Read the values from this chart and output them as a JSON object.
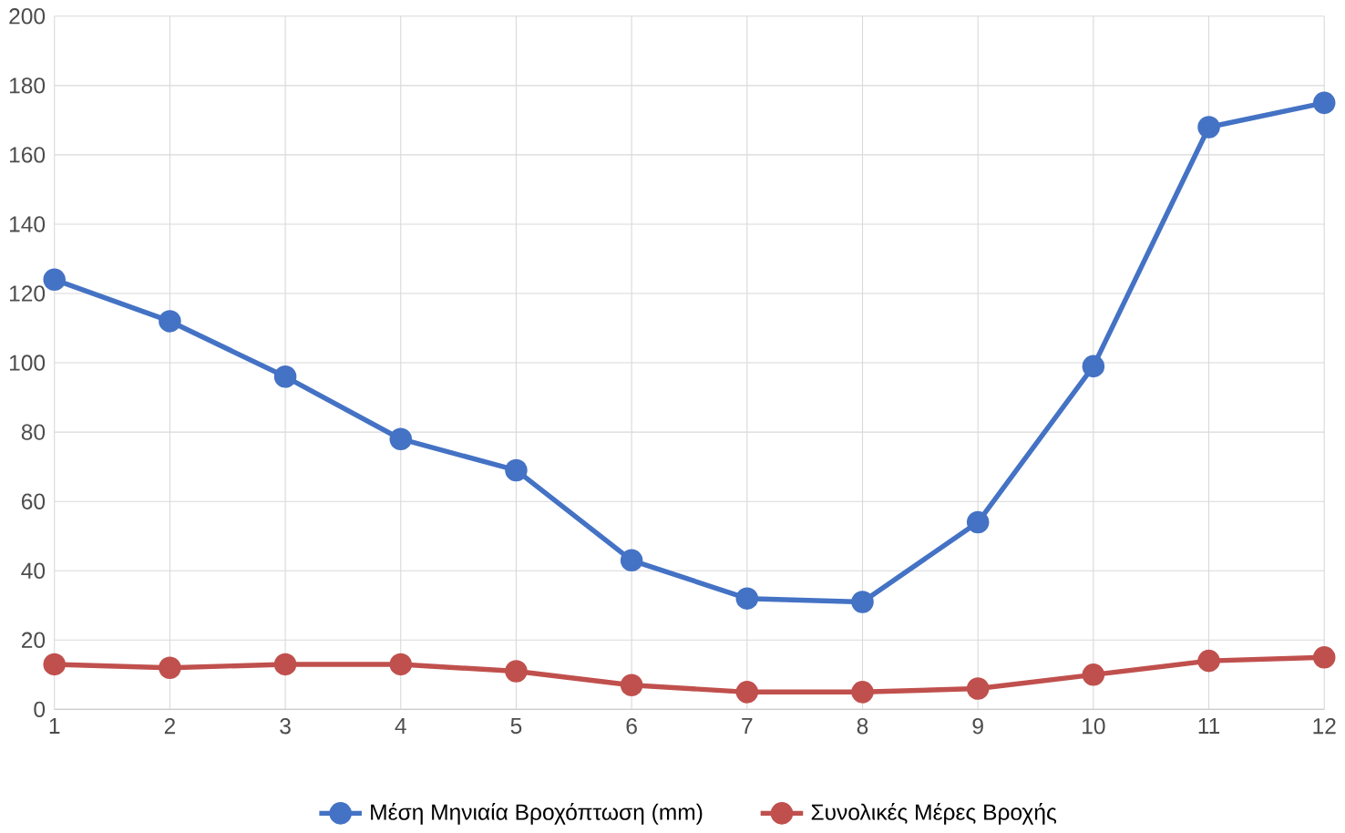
{
  "chart_data": {
    "type": "line",
    "x": [
      1,
      2,
      3,
      4,
      5,
      6,
      7,
      8,
      9,
      10,
      11,
      12
    ],
    "series": [
      {
        "name": "Μέση Μηνιαία Βροχόπτωση (mm)",
        "color": "#4472c4",
        "values": [
          124,
          112,
          96,
          78,
          69,
          43,
          32,
          31,
          54,
          99,
          168,
          175
        ]
      },
      {
        "name": "Συνολικές Μέρες Βροχής",
        "color": "#c0504d",
        "values": [
          13,
          12,
          13,
          13,
          11,
          7,
          5,
          5,
          6,
          10,
          14,
          15
        ]
      }
    ],
    "xlim": [
      1,
      12
    ],
    "xticks": [
      1,
      2,
      3,
      4,
      5,
      6,
      7,
      8,
      9,
      10,
      11,
      12
    ],
    "ylim": [
      0,
      200
    ],
    "yticks": [
      0,
      20,
      40,
      60,
      80,
      100,
      120,
      140,
      160,
      180,
      200
    ],
    "grid": true,
    "legend": "bottom",
    "marker": "circle",
    "line_style": "solid"
  }
}
